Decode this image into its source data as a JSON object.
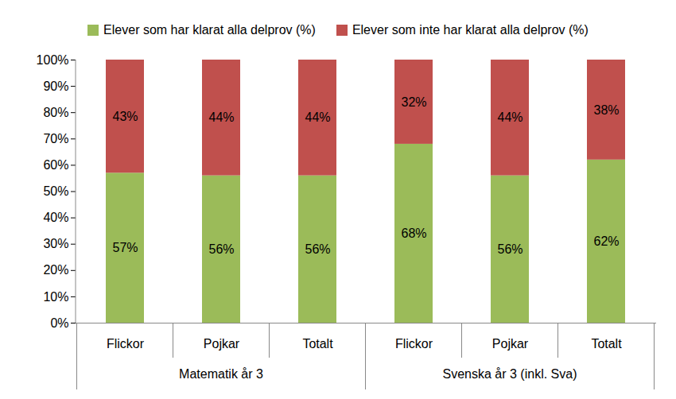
{
  "chart_data": {
    "type": "bar",
    "stacked": true,
    "data_labels": true,
    "legend": "top",
    "grid": false,
    "categories": [
      "Flickor",
      "Pojkar",
      "Totalt",
      "Flickor",
      "Pojkar",
      "Totalt"
    ],
    "category_groups": [
      "Matematik år 3",
      "Matematik år 3",
      "Matematik år 3",
      "Svenska år 3 (inkl. Sva)",
      "Svenska år 3 (inkl. Sva)",
      "Svenska år 3 (inkl. Sva)"
    ],
    "series": [
      {
        "name": "Elever som har klarat alla delprov (%)",
        "color": "#9bbb59",
        "values": [
          57,
          56,
          56,
          68,
          56,
          62
        ],
        "value_labels": [
          "57%",
          "56%",
          "56%",
          "68%",
          "56%",
          "62%"
        ]
      },
      {
        "name": "Elever som inte har klarat alla delprov (%)",
        "color": "#c0504d",
        "values": [
          43,
          44,
          44,
          32,
          44,
          38
        ],
        "value_labels": [
          "43%",
          "44%",
          "44%",
          "32%",
          "44%",
          "38%"
        ]
      }
    ],
    "ylim": [
      0,
      100
    ],
    "yticks": [
      {
        "value": 0,
        "label": "0%"
      },
      {
        "value": 10,
        "label": "10%"
      },
      {
        "value": 20,
        "label": "20%"
      },
      {
        "value": 30,
        "label": "30%"
      },
      {
        "value": 40,
        "label": "40%"
      },
      {
        "value": 50,
        "label": "50%"
      },
      {
        "value": 60,
        "label": "60%"
      },
      {
        "value": 70,
        "label": "70%"
      },
      {
        "value": 80,
        "label": "80%"
      },
      {
        "value": 90,
        "label": "90%"
      },
      {
        "value": 100,
        "label": "100%"
      }
    ]
  }
}
